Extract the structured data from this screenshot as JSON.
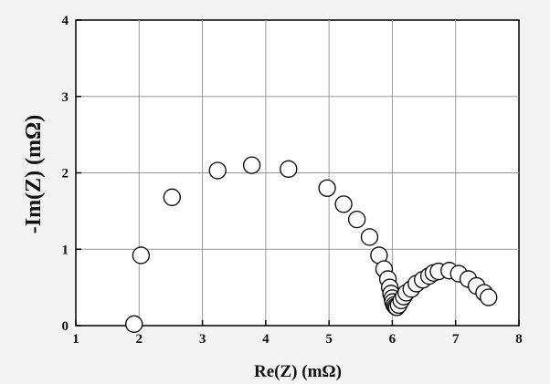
{
  "chart_data": {
    "type": "scatter",
    "title": "",
    "xlabel": "Re(Z) (mΩ)",
    "ylabel": "-Im(Z) (mΩ)",
    "xlim": [
      1,
      8
    ],
    "ylim": [
      0,
      4
    ],
    "xticks": [
      "1",
      "2",
      "3",
      "4",
      "5",
      "6",
      "7",
      "8"
    ],
    "yticks": [
      "0",
      "1",
      "2",
      "3",
      "4"
    ],
    "grid": true,
    "legend": "none",
    "marker": "open-circle",
    "series": [
      {
        "x": [
          1.92,
          2.03,
          2.52,
          3.24,
          3.78,
          4.36,
          4.97,
          5.23,
          5.44,
          5.64,
          5.79,
          5.87,
          5.93,
          5.96,
          5.98,
          6.0,
          6.01,
          6.03,
          6.05,
          6.07,
          6.1,
          6.14,
          6.18,
          6.22,
          6.3,
          6.38,
          6.48,
          6.58,
          6.65,
          6.73,
          6.9,
          7.05,
          7.2,
          7.33,
          7.45,
          7.52
        ],
        "y": [
          0.02,
          0.92,
          1.68,
          2.03,
          2.1,
          2.05,
          1.8,
          1.59,
          1.39,
          1.16,
          0.92,
          0.74,
          0.61,
          0.5,
          0.42,
          0.36,
          0.31,
          0.27,
          0.25,
          0.24,
          0.27,
          0.33,
          0.38,
          0.43,
          0.48,
          0.55,
          0.6,
          0.65,
          0.69,
          0.71,
          0.72,
          0.68,
          0.61,
          0.52,
          0.43,
          0.37
        ]
      }
    ]
  }
}
